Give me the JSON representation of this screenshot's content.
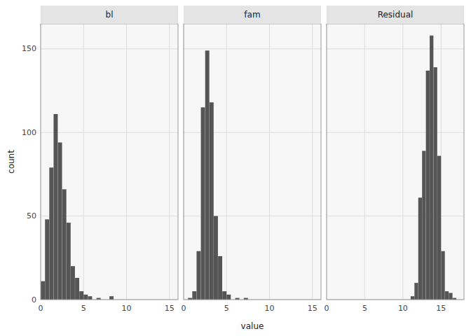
{
  "chart_data": [
    {
      "type": "histogram",
      "title": "bl",
      "ylabel": "count",
      "bins": [
        0.0,
        0.5,
        1.0,
        1.5,
        2.0,
        2.5,
        3.0,
        3.5,
        4.0,
        4.5,
        5.0,
        5.5,
        6.0,
        6.5,
        7.0,
        7.5,
        8.0,
        8.5,
        9.0
      ],
      "values": [
        11,
        48,
        79,
        111,
        94,
        66,
        46,
        20,
        13,
        5,
        3,
        2,
        0,
        1,
        0,
        0,
        2,
        0
      ],
      "color": "#555555",
      "xlim": [
        0,
        16
      ],
      "xticks": [
        0,
        5,
        10,
        15
      ],
      "ylim": [
        0,
        165
      ],
      "yticks": [
        0,
        50,
        100,
        150
      ],
      "grid": true
    },
    {
      "type": "histogram",
      "title": "fam",
      "xlabel": "value",
      "bins": [
        0.5,
        1.0,
        1.5,
        2.0,
        2.5,
        3.0,
        3.5,
        4.0,
        4.5,
        5.0,
        5.5,
        6.0,
        6.5,
        7.0,
        7.5
      ],
      "values": [
        1,
        5,
        29,
        115,
        149,
        118,
        50,
        26,
        5,
        3,
        0,
        1,
        0,
        1
      ],
      "color": "#555555",
      "xlim": [
        0,
        16
      ],
      "xticks": [
        0,
        5,
        10,
        15
      ],
      "ylim": [
        0,
        165
      ],
      "yticks": [
        0,
        50,
        100,
        150
      ],
      "grid": true,
      "tick_labels": "x"
    },
    {
      "type": "histogram",
      "title": "Residual",
      "bins": [
        11.0,
        11.5,
        12.0,
        12.5,
        13.0,
        13.5,
        14.0,
        14.5,
        15.0,
        15.5,
        16.0,
        16.5,
        17.0,
        17.5
      ],
      "values": [
        2,
        10,
        61,
        89,
        137,
        158,
        139,
        86,
        29,
        5,
        4,
        1,
        0
      ],
      "color": "#555555",
      "xlim": [
        0,
        18
      ],
      "xticks": [
        0,
        5,
        10,
        15
      ],
      "ylim": [
        0,
        165
      ],
      "yticks": [
        0,
        50,
        100,
        150
      ],
      "grid": true,
      "tick_labels": "x"
    }
  ]
}
